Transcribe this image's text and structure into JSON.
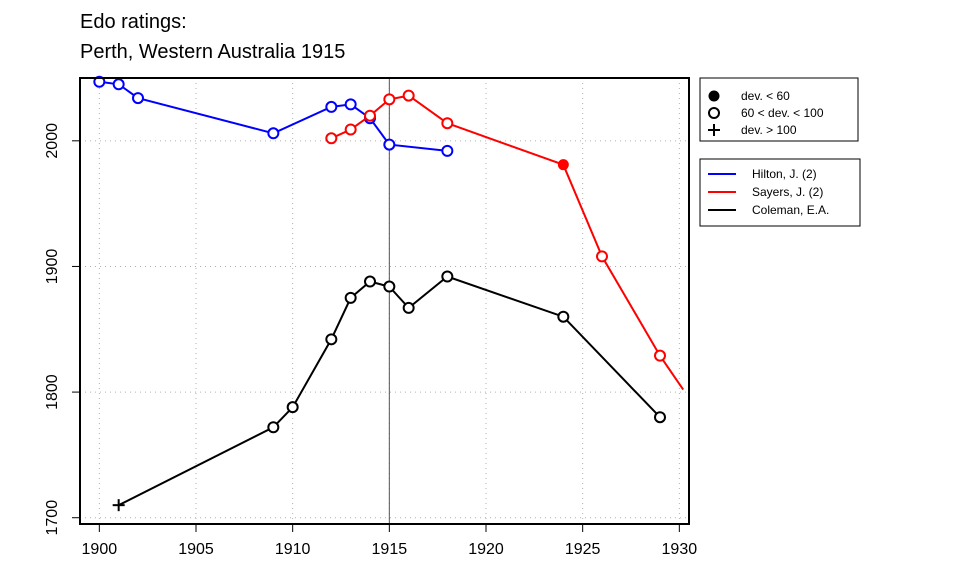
{
  "chart_data": {
    "type": "line",
    "title": [
      "Edo ratings:",
      "Perth, Western Australia 1915"
    ],
    "xlabel": "",
    "ylabel": "",
    "xlim": [
      1899,
      1930.5
    ],
    "ylim": [
      1695,
      2050
    ],
    "x_ticks": [
      1900,
      1905,
      1910,
      1915,
      1920,
      1925,
      1930
    ],
    "y_ticks": [
      1700,
      1800,
      1900,
      2000
    ],
    "grid": true,
    "reference_line_x": 1915,
    "marker_legend": {
      "placement": "top-right outside",
      "entries": [
        {
          "symbol": "filled-circle",
          "label": "dev. < 60"
        },
        {
          "symbol": "open-circle",
          "label": "60 < dev. < 100"
        },
        {
          "symbol": "plus",
          "label": "dev. > 100"
        }
      ]
    },
    "series_legend_placement": "right outside",
    "series": [
      {
        "name": "Hilton, J. (2)",
        "color": "#0000ff",
        "points": [
          {
            "x": 1900,
            "y": 2047,
            "marker": "open-circle"
          },
          {
            "x": 1901,
            "y": 2045,
            "marker": "open-circle"
          },
          {
            "x": 1902,
            "y": 2034,
            "marker": "open-circle"
          },
          {
            "x": 1909,
            "y": 2006,
            "marker": "open-circle"
          },
          {
            "x": 1912,
            "y": 2027,
            "marker": "open-circle"
          },
          {
            "x": 1913,
            "y": 2029,
            "marker": "open-circle"
          },
          {
            "x": 1914,
            "y": 2018,
            "marker": "open-circle"
          },
          {
            "x": 1915,
            "y": 1997,
            "marker": "open-circle"
          },
          {
            "x": 1918,
            "y": 1992,
            "marker": "open-circle"
          }
        ]
      },
      {
        "name": "Sayers, J. (2)",
        "color": "#ff0000",
        "points": [
          {
            "x": 1912,
            "y": 2002,
            "marker": "open-circle"
          },
          {
            "x": 1913,
            "y": 2009,
            "marker": "open-circle"
          },
          {
            "x": 1914,
            "y": 2020,
            "marker": "open-circle"
          },
          {
            "x": 1915,
            "y": 2033,
            "marker": "open-circle"
          },
          {
            "x": 1916,
            "y": 2036,
            "marker": "open-circle"
          },
          {
            "x": 1918,
            "y": 2014,
            "marker": "open-circle"
          },
          {
            "x": 1924,
            "y": 1981,
            "marker": "filled-circle"
          },
          {
            "x": 1926,
            "y": 1908,
            "marker": "open-circle"
          },
          {
            "x": 1929,
            "y": 1829,
            "marker": "open-circle"
          },
          {
            "x": 1930.2,
            "y": 1802,
            "marker": "none"
          }
        ]
      },
      {
        "name": "Coleman, E.A.",
        "color": "#000000",
        "points": [
          {
            "x": 1901,
            "y": 1710,
            "marker": "plus"
          },
          {
            "x": 1909,
            "y": 1772,
            "marker": "open-circle"
          },
          {
            "x": 1910,
            "y": 1788,
            "marker": "open-circle"
          },
          {
            "x": 1912,
            "y": 1842,
            "marker": "open-circle"
          },
          {
            "x": 1913,
            "y": 1875,
            "marker": "open-circle"
          },
          {
            "x": 1914,
            "y": 1888,
            "marker": "open-circle"
          },
          {
            "x": 1915,
            "y": 1884,
            "marker": "open-circle"
          },
          {
            "x": 1916,
            "y": 1867,
            "marker": "open-circle"
          },
          {
            "x": 1918,
            "y": 1892,
            "marker": "open-circle"
          },
          {
            "x": 1924,
            "y": 1860,
            "marker": "open-circle"
          },
          {
            "x": 1929,
            "y": 1780,
            "marker": "open-circle"
          }
        ]
      }
    ]
  }
}
